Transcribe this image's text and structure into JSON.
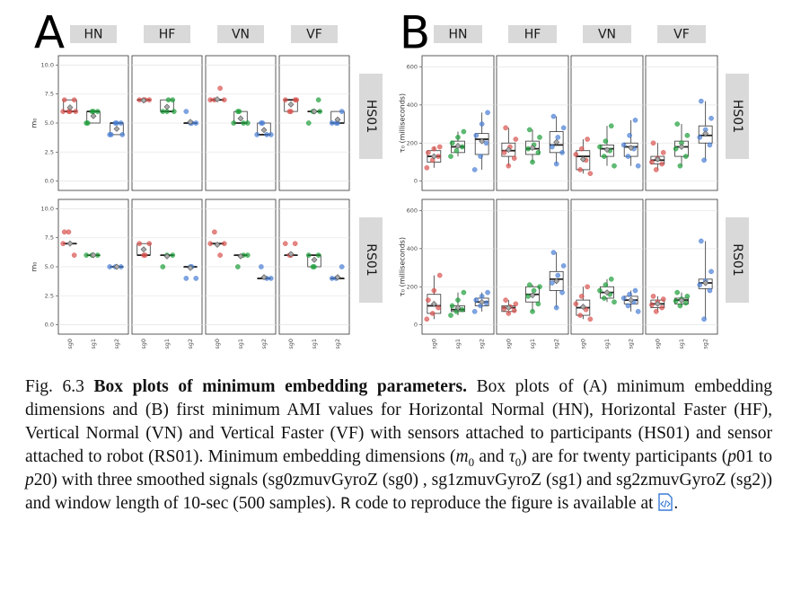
{
  "chart_data": [
    {
      "type": "box",
      "label": "A",
      "ylabel": "m₀",
      "columns": [
        "HN",
        "HF",
        "VN",
        "VF"
      ],
      "rows": [
        "HS01",
        "RS01"
      ],
      "categories": [
        "sg0",
        "sg1",
        "sg2"
      ],
      "colors": [
        "#d9534f",
        "#1e9e3a",
        "#4a7fd4"
      ],
      "grid": true,
      "ylim": [
        -0.5,
        10.5
      ],
      "yticks": [
        {
          "value": 0,
          "label": "0.0"
        },
        {
          "value": 2.5,
          "label": "2.5"
        },
        {
          "value": 5,
          "label": "5.0"
        },
        {
          "value": 7.5,
          "label": "7.5"
        },
        {
          "value": 10,
          "label": "10.0"
        }
      ],
      "facets": [
        [
          [
            {
              "min": 6,
              "q1": 6,
              "median": 6,
              "q3": 7,
              "max": 7,
              "mean": 6.35,
              "points": [
                6,
                6,
                7,
                7,
                6,
                6
              ]
            },
            {
              "min": 5,
              "q1": 5,
              "median": 6,
              "q3": 6,
              "max": 6,
              "mean": 5.6,
              "points": [
                5,
                6,
                6,
                5,
                6
              ]
            },
            {
              "min": 4,
              "q1": 4,
              "median": 5,
              "q3": 5,
              "max": 5,
              "mean": 4.5,
              "points": [
                4,
                5,
                5,
                4,
                5,
                4
              ]
            }
          ],
          [
            {
              "min": 7,
              "q1": 7,
              "median": 7,
              "q3": 7,
              "max": 7,
              "mean": 6.95,
              "points": [
                7,
                7,
                7,
                7
              ]
            },
            {
              "min": 6,
              "q1": 6,
              "median": 6,
              "q3": 7,
              "max": 7,
              "mean": 6.4,
              "points": [
                6,
                7,
                6,
                7,
                6
              ]
            },
            {
              "min": 5,
              "q1": 5,
              "median": 5,
              "q3": 5,
              "max": 5,
              "mean": 5.1,
              "points": [
                5,
                5,
                6,
                5
              ]
            }
          ],
          [
            {
              "min": 7,
              "q1": 7,
              "median": 7,
              "q3": 7,
              "max": 7,
              "mean": 7.05,
              "points": [
                7,
                7,
                8,
                7
              ]
            },
            {
              "min": 5,
              "q1": 5,
              "median": 5,
              "q3": 6,
              "max": 6,
              "mean": 5.4,
              "points": [
                5,
                6,
                5,
                5,
                6
              ]
            },
            {
              "min": 4,
              "q1": 4,
              "median": 4,
              "q3": 5,
              "max": 5,
              "mean": 4.4,
              "points": [
                4,
                5,
                4,
                4,
                5
              ]
            }
          ],
          [
            {
              "min": 6,
              "q1": 6,
              "median": 7,
              "q3": 7,
              "max": 7,
              "mean": 6.6,
              "points": [
                6,
                7,
                7,
                6,
                7
              ]
            },
            {
              "min": 6,
              "q1": 6,
              "median": 6,
              "q3": 6,
              "max": 6,
              "mean": 6,
              "points": [
                6,
                7,
                5,
                6,
                6
              ]
            },
            {
              "min": 5,
              "q1": 5,
              "median": 5,
              "q3": 6,
              "max": 6,
              "mean": 5.3,
              "points": [
                5,
                6,
                5,
                5
              ]
            }
          ]
        ],
        [
          [
            {
              "min": 7,
              "q1": 7,
              "median": 7,
              "q3": 7,
              "max": 7,
              "mean": 7,
              "points": [
                7,
                8,
                6,
                8
              ]
            },
            {
              "min": 6,
              "q1": 6,
              "median": 6,
              "q3": 6,
              "max": 6,
              "mean": 6,
              "points": [
                6,
                6,
                6
              ]
            },
            {
              "min": 5,
              "q1": 5,
              "median": 5,
              "q3": 5,
              "max": 5,
              "mean": 5,
              "points": [
                5,
                5,
                5
              ]
            }
          ],
          [
            {
              "min": 6,
              "q1": 6,
              "median": 6,
              "q3": 7,
              "max": 7,
              "mean": 6.5,
              "points": [
                6,
                7,
                7,
                6
              ]
            },
            {
              "min": 6,
              "q1": 6,
              "median": 6,
              "q3": 6,
              "max": 6,
              "mean": 5.9,
              "points": [
                6,
                6,
                5
              ]
            },
            {
              "min": 5,
              "q1": 5,
              "median": 5,
              "q3": 5,
              "max": 5,
              "mean": 4.9,
              "points": [
                5,
                4,
                4,
                5
              ]
            }
          ],
          [
            {
              "min": 7,
              "q1": 7,
              "median": 7,
              "q3": 7,
              "max": 7,
              "mean": 6.9,
              "points": [
                7,
                8,
                6,
                7
              ]
            },
            {
              "min": 6,
              "q1": 6,
              "median": 6,
              "q3": 6,
              "max": 6,
              "mean": 5.9,
              "points": [
                6,
                5,
                6
              ]
            },
            {
              "min": 4,
              "q1": 4,
              "median": 4,
              "q3": 4,
              "max": 4,
              "mean": 4.1,
              "points": [
                4,
                5,
                4
              ]
            }
          ],
          [
            {
              "min": 6,
              "q1": 6,
              "median": 6,
              "q3": 6,
              "max": 6,
              "mean": 6.1,
              "points": [
                6,
                7,
                7,
                6
              ]
            },
            {
              "min": 5,
              "q1": 5,
              "median": 6,
              "q3": 6,
              "max": 6,
              "mean": 5.6,
              "points": [
                5,
                6,
                6,
                5
              ]
            },
            {
              "min": 4,
              "q1": 4,
              "median": 4,
              "q3": 4,
              "max": 4,
              "mean": 4.1,
              "points": [
                4,
                5,
                4
              ]
            }
          ]
        ]
      ]
    },
    {
      "type": "box",
      "label": "B",
      "ylabel": "τ₀ (milliseconds)",
      "columns": [
        "HN",
        "HF",
        "VN",
        "VF"
      ],
      "rows": [
        "HS01",
        "RS01"
      ],
      "categories": [
        "sg0",
        "sg1",
        "sg2"
      ],
      "colors": [
        "#d9534f",
        "#1e9e3a",
        "#4a7fd4"
      ],
      "grid": true,
      "ylim": [
        -30,
        640
      ],
      "yticks": [
        0,
        200,
        400,
        600
      ],
      "facets": [
        [
          [
            {
              "min": 70,
              "q1": 100,
              "median": 130,
              "q3": 160,
              "max": 180,
              "mean": 130,
              "points": [
                70,
                110,
                130,
                150,
                170,
                180
              ]
            },
            {
              "min": 130,
              "q1": 150,
              "median": 180,
              "q3": 210,
              "max": 260,
              "mean": 185,
              "points": [
                130,
                160,
                180,
                200,
                230,
                260
              ]
            },
            {
              "min": 60,
              "q1": 140,
              "median": 220,
              "q3": 250,
              "max": 360,
              "mean": 210,
              "points": [
                60,
                130,
                200,
                240,
                300,
                360
              ]
            }
          ],
          [
            {
              "min": 80,
              "q1": 130,
              "median": 160,
              "q3": 200,
              "max": 280,
              "mean": 165,
              "points": [
                80,
                120,
                150,
                180,
                220,
                280
              ]
            },
            {
              "min": 100,
              "q1": 140,
              "median": 170,
              "q3": 210,
              "max": 270,
              "mean": 175,
              "points": [
                100,
                150,
                170,
                190,
                230,
                270
              ]
            },
            {
              "min": 90,
              "q1": 150,
              "median": 190,
              "q3": 260,
              "max": 340,
              "mean": 205,
              "points": [
                90,
                150,
                180,
                230,
                280,
                340
              ]
            }
          ],
          [
            {
              "min": 40,
              "q1": 60,
              "median": 130,
              "q3": 160,
              "max": 220,
              "mean": 115,
              "points": [
                40,
                60,
                110,
                140,
                170,
                220
              ]
            },
            {
              "min": 80,
              "q1": 130,
              "median": 170,
              "q3": 190,
              "max": 290,
              "mean": 165,
              "points": [
                80,
                130,
                160,
                180,
                210,
                290
              ]
            },
            {
              "min": 80,
              "q1": 130,
              "median": 180,
              "q3": 200,
              "max": 320,
              "mean": 175,
              "points": [
                80,
                130,
                170,
                190,
                240,
                320
              ]
            }
          ],
          [
            {
              "min": 60,
              "q1": 90,
              "median": 110,
              "q3": 130,
              "max": 200,
              "mean": 115,
              "points": [
                60,
                90,
                100,
                120,
                150,
                200
              ]
            },
            {
              "min": 80,
              "q1": 130,
              "median": 180,
              "q3": 210,
              "max": 300,
              "mean": 180,
              "points": [
                80,
                130,
                170,
                200,
                240,
                300
              ]
            },
            {
              "min": 110,
              "q1": 200,
              "median": 240,
              "q3": 290,
              "max": 420,
              "mean": 250,
              "points": [
                110,
                190,
                230,
                270,
                330,
                420
              ]
            }
          ]
        ],
        [
          [
            {
              "min": 30,
              "q1": 60,
              "median": 100,
              "q3": 160,
              "max": 260,
              "mean": 110,
              "points": [
                30,
                60,
                90,
                130,
                180,
                260
              ]
            },
            {
              "min": 50,
              "q1": 70,
              "median": 80,
              "q3": 100,
              "max": 170,
              "mean": 90,
              "points": [
                50,
                70,
                80,
                100,
                130,
                170
              ]
            },
            {
              "min": 70,
              "q1": 100,
              "median": 120,
              "q3": 140,
              "max": 170,
              "mean": 120,
              "points": [
                70,
                100,
                115,
                130,
                150,
                170
              ]
            }
          ],
          [
            {
              "min": 60,
              "q1": 70,
              "median": 90,
              "q3": 100,
              "max": 130,
              "mean": 90,
              "points": [
                60,
                75,
                85,
                95,
                110,
                130
              ]
            },
            {
              "min": 70,
              "q1": 120,
              "median": 160,
              "q3": 200,
              "max": 210,
              "mean": 155,
              "points": [
                70,
                110,
                150,
                180,
                200,
                210
              ]
            },
            {
              "min": 90,
              "q1": 180,
              "median": 240,
              "q3": 280,
              "max": 380,
              "mean": 230,
              "points": [
                90,
                170,
                220,
                260,
                310,
                380
              ]
            }
          ],
          [
            {
              "min": 30,
              "q1": 50,
              "median": 90,
              "q3": 130,
              "max": 200,
              "mean": 95,
              "points": [
                30,
                50,
                80,
                110,
                150,
                200
              ]
            },
            {
              "min": 120,
              "q1": 140,
              "median": 170,
              "q3": 200,
              "max": 240,
              "mean": 170,
              "points": [
                120,
                140,
                160,
                180,
                210,
                240
              ]
            },
            {
              "min": 70,
              "q1": 110,
              "median": 130,
              "q3": 150,
              "max": 180,
              "mean": 130,
              "points": [
                70,
                100,
                120,
                140,
                160,
                180
              ]
            }
          ],
          [
            {
              "min": 70,
              "q1": 90,
              "median": 110,
              "q3": 130,
              "max": 150,
              "mean": 110,
              "points": [
                70,
                90,
                105,
                120,
                135,
                150
              ]
            },
            {
              "min": 100,
              "q1": 110,
              "median": 130,
              "q3": 140,
              "max": 170,
              "mean": 128,
              "points": [
                100,
                115,
                125,
                135,
                150,
                170
              ]
            },
            {
              "min": 30,
              "q1": 190,
              "median": 220,
              "q3": 240,
              "max": 440,
              "mean": 220,
              "points": [
                30,
                180,
                210,
                230,
                280,
                440
              ]
            }
          ]
        ]
      ]
    }
  ],
  "caption": [
    {
      "text": "Fig. 6.3 ",
      "style": "normal"
    },
    {
      "text": "Box plots of minimum embedding parameters.",
      "style": "bold"
    },
    {
      "text": " Box plots of (A) minimum embedding dimensions and (B) first minimum AMI values for Horizontal Normal (HN), Horizontal Faster (HF), Vertical Normal (VN) and Vertical Faster (VF) with sensors attached to participants (HS01) and sensor attached to robot (RS01). Minimum embedding dimensions (",
      "style": "normal"
    },
    {
      "text": "m",
      "style": "italic"
    },
    {
      "text": "0",
      "style": "sub"
    },
    {
      "text": " and ",
      "style": "normal"
    },
    {
      "text": "τ",
      "style": "italic"
    },
    {
      "text": "0",
      "style": "sub"
    },
    {
      "text": ") are for twenty participants (",
      "style": "normal"
    },
    {
      "text": "p",
      "style": "italic"
    },
    {
      "text": "01 to ",
      "style": "normal"
    },
    {
      "text": "p",
      "style": "italic"
    },
    {
      "text": "20) with three smoothed signals (sg0zmuvGyroZ (sg0) , sg1zmuvGyroZ (sg1) and sg2zmuvGyroZ (sg2)) and window length of 10-sec (500 samples). ",
      "style": "normal"
    },
    {
      "text": "R",
      "style": "sans"
    },
    {
      "text": " code to reproduce the figure is available at ",
      "style": "normal"
    },
    {
      "text": "",
      "style": "icon"
    },
    {
      "text": ".",
      "style": "normal"
    }
  ]
}
